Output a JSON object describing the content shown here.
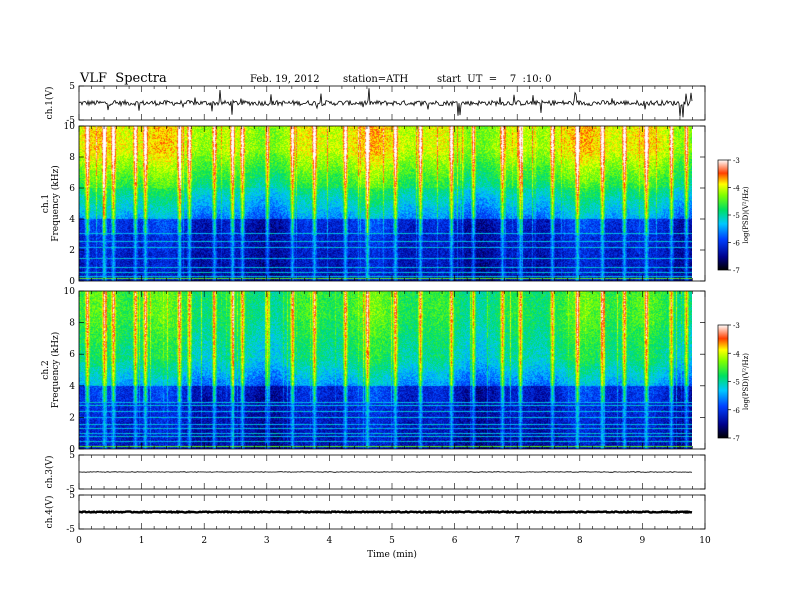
{
  "header": {
    "title": "VLF  Spectra",
    "date": "Feb. 19, 2012",
    "station": "station=ATH",
    "start": "start  UT  =    7  :10: 0"
  },
  "chart_data": [
    {
      "type": "line",
      "panel": "ch1-waveform",
      "ylabel": "ch.1(V)",
      "ylim": [
        -5,
        5
      ],
      "yticks": [
        "5",
        "-5"
      ],
      "xlim": [
        0,
        10
      ],
      "baseline": 0,
      "amplitude_typical": 1.5
    },
    {
      "type": "heatmap",
      "panel": "ch1-spectrogram",
      "ylabel": "ch.1\nFrequency  (kHz)",
      "ylim": [
        0,
        10
      ],
      "yticks": [
        "0",
        "2",
        "4",
        "6",
        "8",
        "10"
      ],
      "xlim": [
        0,
        9.8
      ],
      "colorbar": {
        "label": "log(PSD)(V²/Hz)",
        "range": [
          -7,
          -3
        ],
        "ticks": [
          "-3",
          "-4",
          "-5",
          "-6",
          "-7"
        ]
      },
      "spheric_times_min": [
        0.12,
        0.4,
        0.55,
        0.9,
        1.05,
        1.6,
        1.75,
        2.15,
        2.45,
        2.6,
        3.0,
        3.4,
        3.75,
        4.25,
        4.6,
        5.05,
        5.45,
        5.95,
        6.3,
        6.75,
        7.05,
        7.55,
        7.95,
        8.35,
        8.7,
        9.05,
        9.45,
        9.7
      ],
      "noise_lines_khz": [
        0.3,
        0.6,
        0.9,
        1.5,
        2.2,
        2.6,
        3.1
      ]
    },
    {
      "type": "heatmap",
      "panel": "ch2-spectrogram",
      "ylabel": "ch.2\nFrequency  (kHz)",
      "ylim": [
        0,
        10
      ],
      "yticks": [
        "0",
        "2",
        "4",
        "6",
        "8",
        "10"
      ],
      "xlim": [
        0,
        9.8
      ],
      "colorbar": {
        "label": "log(PSD)(V²/Hz)",
        "range": [
          -7,
          -3
        ],
        "ticks": [
          "-3",
          "-4",
          "-5",
          "-6",
          "-7"
        ]
      },
      "spheric_times_min": [
        0.12,
        0.4,
        0.55,
        0.9,
        1.05,
        1.6,
        1.75,
        2.15,
        2.45,
        2.6,
        3.0,
        3.4,
        3.75,
        4.25,
        4.6,
        5.05,
        5.45,
        5.95,
        6.3,
        6.75,
        7.05,
        7.55,
        7.95,
        8.35,
        8.7,
        9.05,
        9.45,
        9.7
      ],
      "noise_lines_khz": [
        0.2,
        0.5,
        0.8,
        1.0,
        1.3,
        1.6,
        2.0,
        2.4,
        2.8,
        3.0
      ]
    },
    {
      "type": "line",
      "panel": "ch3-waveform",
      "ylabel": "ch.3(V)",
      "ylim": [
        -5,
        5
      ],
      "yticks": [
        "5",
        "-5"
      ],
      "xlim": [
        0,
        10
      ],
      "baseline": 0,
      "amplitude_typical": 0.2
    },
    {
      "type": "line",
      "panel": "ch4-waveform",
      "ylabel": "ch.4(V)",
      "ylim": [
        -5,
        5
      ],
      "yticks": [
        "5",
        "-5"
      ],
      "xlim": [
        0,
        10
      ],
      "xticks": [
        "0",
        "1",
        "2",
        "3",
        "4",
        "5",
        "6",
        "7",
        "8",
        "9",
        "10"
      ],
      "xlabel": "Time  (min)",
      "baseline": 0,
      "amplitude_typical": 0.3
    }
  ]
}
